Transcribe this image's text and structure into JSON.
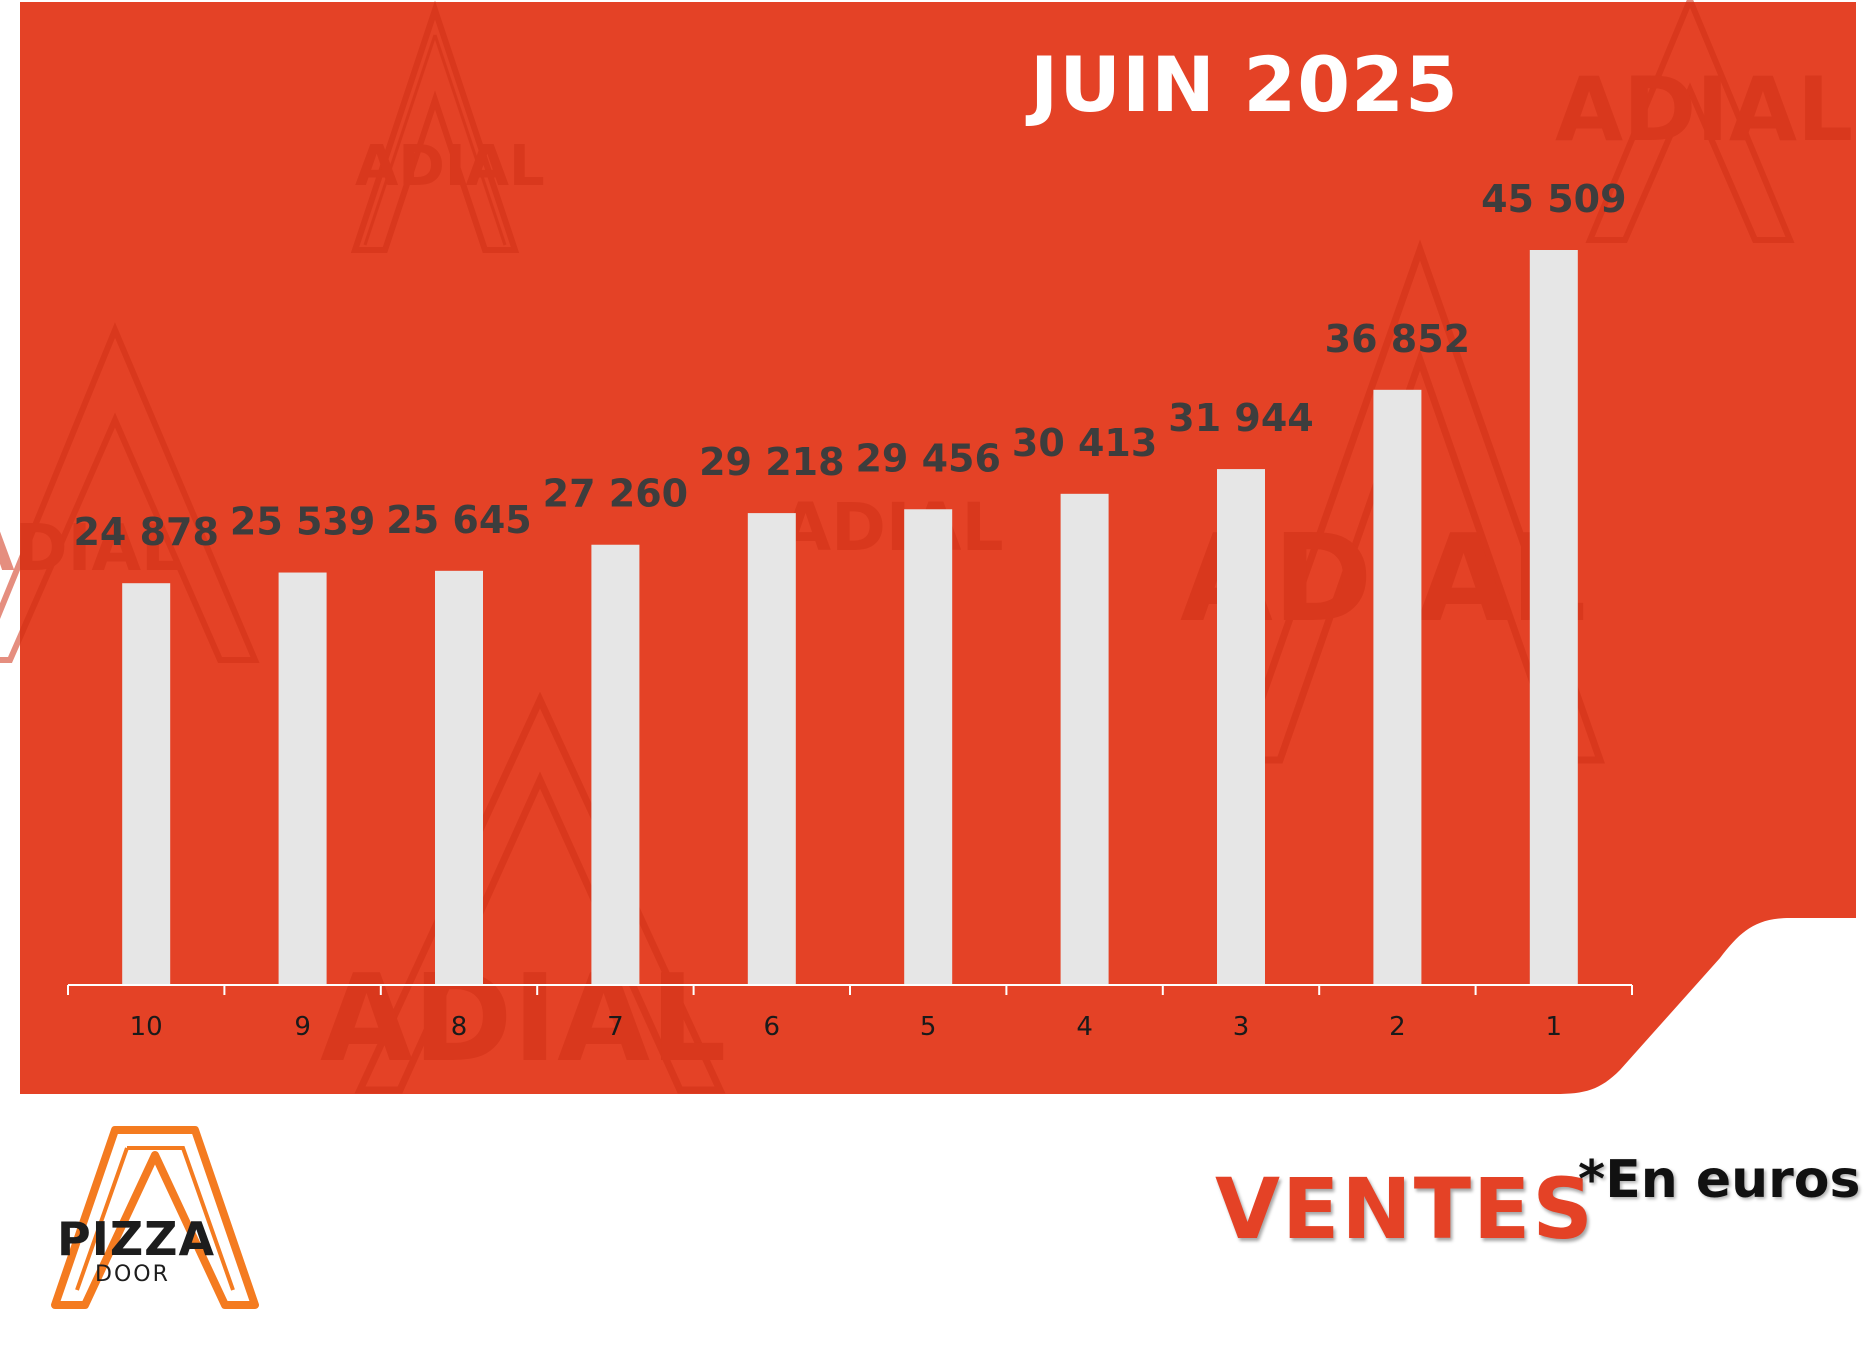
{
  "header": {
    "title": "JUIN 2025"
  },
  "footer": {
    "label": "VENTES",
    "unit_note": "*En euros",
    "logo": {
      "line1": "PIZZA",
      "line2": "DOOR"
    }
  },
  "watermark": {
    "text": "ADIAL"
  },
  "colors": {
    "panel": "#e44226",
    "bar": "#e6e6e6",
    "value_label": "#3d3d3d",
    "axis": "#ffffff",
    "logo_orange": "#f47b20"
  },
  "chart_data": {
    "type": "bar",
    "title": "JUIN 2025",
    "xlabel": "",
    "ylabel": "",
    "categories": [
      "10",
      "9",
      "8",
      "7",
      "6",
      "5",
      "4",
      "3",
      "2",
      "1"
    ],
    "values": [
      24878,
      25539,
      25645,
      27260,
      29218,
      29456,
      30413,
      31944,
      36852,
      45509
    ],
    "value_labels": [
      "24 878",
      "25 539",
      "25 645",
      "27 260",
      "29 218",
      "29 456",
      "30 413",
      "31 944",
      "36 852",
      "45 509"
    ],
    "ylim": [
      0,
      50000
    ],
    "grid": false,
    "legend": "none"
  }
}
